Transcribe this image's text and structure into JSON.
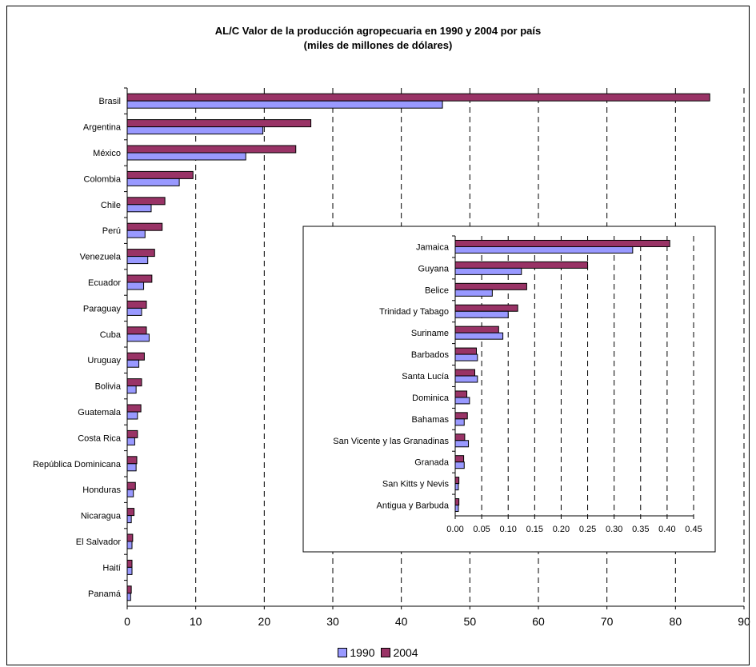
{
  "chart_data": [
    {
      "type": "bar",
      "orientation": "horizontal",
      "title": "AL/C Valor de la producción agropecuaria en 1990 y 2004 por país",
      "subtitle": "(miles de millones de dólares)",
      "categories": [
        "Brasil",
        "Argentina",
        "México",
        "Colombia",
        "Chile",
        "Perú",
        "Venezuela",
        "Ecuador",
        "Paraguay",
        "Cuba",
        "Uruguay",
        "Bolivia",
        "Guatemala",
        "Costa Rica",
        "República Dominicana",
        "Honduras",
        "Nicaragua",
        "El Salvador",
        "Haití",
        "Panamá"
      ],
      "series": [
        {
          "name": "1990",
          "color": "#9999ff",
          "values": [
            46.0,
            19.8,
            17.3,
            7.6,
            3.5,
            2.6,
            3.0,
            2.4,
            2.1,
            3.2,
            1.7,
            1.3,
            1.5,
            1.1,
            1.3,
            0.9,
            0.6,
            0.7,
            0.7,
            0.5
          ]
        },
        {
          "name": "2004",
          "color": "#993366",
          "values": [
            85.0,
            26.8,
            24.6,
            9.6,
            5.5,
            5.1,
            4.0,
            3.6,
            2.8,
            2.8,
            2.5,
            2.1,
            2.0,
            1.5,
            1.4,
            1.2,
            1.0,
            0.8,
            0.7,
            0.6
          ]
        }
      ],
      "xlim": [
        0,
        90
      ],
      "xticks": [
        "0",
        "10",
        "20",
        "30",
        "40",
        "50",
        "60",
        "70",
        "80",
        "90"
      ],
      "grid": "vertical dashed",
      "legend": "bottom"
    },
    {
      "type": "bar",
      "orientation": "horizontal",
      "categories": [
        "Jamaica",
        "Guyana",
        "Belice",
        "Trinidad y Tabago",
        "Suriname",
        "Barbados",
        "Santa Lucía",
        "Dominica",
        "Bahamas",
        "San Vicente y las Granadinas",
        "Granada",
        "San Kitts y Nevis",
        "Antigua y Barbuda"
      ],
      "series": [
        {
          "name": "1990",
          "color": "#9999ff",
          "values": [
            0.335,
            0.125,
            0.07,
            0.1,
            0.09,
            0.042,
            0.042,
            0.027,
            0.017,
            0.025,
            0.017,
            0.006,
            0.006
          ]
        },
        {
          "name": "2004",
          "color": "#993366",
          "values": [
            0.405,
            0.25,
            0.135,
            0.118,
            0.082,
            0.04,
            0.037,
            0.022,
            0.023,
            0.018,
            0.016,
            0.007,
            0.007
          ]
        }
      ],
      "xlim": [
        0,
        0.45
      ],
      "xticks": [
        "0.00",
        "0.05",
        "0.10",
        "0.15",
        "0.20",
        "0.25",
        "0.30",
        "0.35",
        "0.40",
        "0.45"
      ],
      "grid": "vertical dashed"
    }
  ],
  "legend": {
    "label_1990": "1990",
    "label_2004": "2004"
  }
}
